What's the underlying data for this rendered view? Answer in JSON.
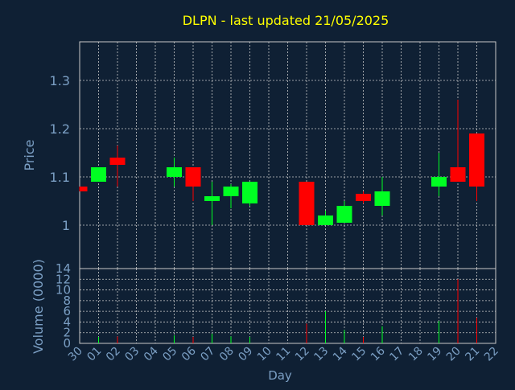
{
  "colors": {
    "background": "#0f2034",
    "title": "#ffff00",
    "axis_text": "#7b9fc4",
    "grid": "#c8c8c8",
    "up": "#00ff22",
    "down": "#ff0000"
  },
  "chart_data": {
    "type": "candlestick",
    "title": "DLPN - last updated 21/05/2025",
    "xlabel": "Day",
    "ylabel_price": "Price",
    "ylabel_volume": "Volume (0000)",
    "categories": [
      "30",
      "01",
      "02",
      "03",
      "04",
      "05",
      "06",
      "07",
      "08",
      "09",
      "10",
      "11",
      "12",
      "13",
      "14",
      "15",
      "16",
      "17",
      "18",
      "19",
      "20",
      "21",
      "22"
    ],
    "price_ylim": [
      0.91,
      1.38
    ],
    "price_ticks": [
      1,
      1.1,
      1.2,
      1.3
    ],
    "price_tick_labels": [
      "1",
      "1.1",
      "1.2",
      "1.3"
    ],
    "volume_ylim": [
      0,
      14
    ],
    "volume_ticks": [
      0,
      2,
      4,
      6,
      8,
      10,
      12,
      14
    ],
    "grid": true,
    "candles": [
      {
        "day": "30",
        "open": 1.08,
        "close": 1.07,
        "high": 1.08,
        "low": 1.07,
        "volume": 0.0
      },
      {
        "day": "01",
        "open": 1.09,
        "close": 1.12,
        "high": 1.12,
        "low": 1.09,
        "volume": 1.2
      },
      {
        "day": "02",
        "open": 1.14,
        "close": 1.125,
        "high": 1.165,
        "low": 1.08,
        "volume": 1.3
      },
      {
        "day": "05",
        "open": 1.1,
        "close": 1.12,
        "high": 1.14,
        "low": 1.08,
        "volume": 1.5
      },
      {
        "day": "06",
        "open": 1.12,
        "close": 1.08,
        "high": 1.12,
        "low": 1.05,
        "volume": 1.2
      },
      {
        "day": "07",
        "open": 1.05,
        "close": 1.06,
        "high": 1.09,
        "low": 1.0,
        "volume": 1.8
      },
      {
        "day": "08",
        "open": 1.06,
        "close": 1.08,
        "high": 1.085,
        "low": 1.035,
        "volume": 1.3
      },
      {
        "day": "09",
        "open": 1.045,
        "close": 1.09,
        "high": 1.09,
        "low": 1.04,
        "volume": 1.2
      },
      {
        "day": "12",
        "open": 1.09,
        "close": 1.0,
        "high": 1.09,
        "low": 1.0,
        "volume": 3.7
      },
      {
        "day": "13",
        "open": 1.0,
        "close": 1.02,
        "high": 1.03,
        "low": 1.0,
        "volume": 6.0
      },
      {
        "day": "14",
        "open": 1.005,
        "close": 1.04,
        "high": 1.05,
        "low": 1.005,
        "volume": 2.5
      },
      {
        "day": "15",
        "open": 1.065,
        "close": 1.05,
        "high": 1.07,
        "low": 1.045,
        "volume": 1.2
      },
      {
        "day": "16",
        "open": 1.04,
        "close": 1.07,
        "high": 1.1,
        "low": 1.02,
        "volume": 3.2
      },
      {
        "day": "19",
        "open": 1.08,
        "close": 1.1,
        "high": 1.15,
        "low": 1.06,
        "volume": 4.2
      },
      {
        "day": "20",
        "open": 1.12,
        "close": 1.09,
        "high": 1.26,
        "low": 1.09,
        "volume": 12.0
      },
      {
        "day": "21",
        "open": 1.19,
        "close": 1.08,
        "high": 1.19,
        "low": 1.05,
        "volume": 4.8
      }
    ]
  }
}
